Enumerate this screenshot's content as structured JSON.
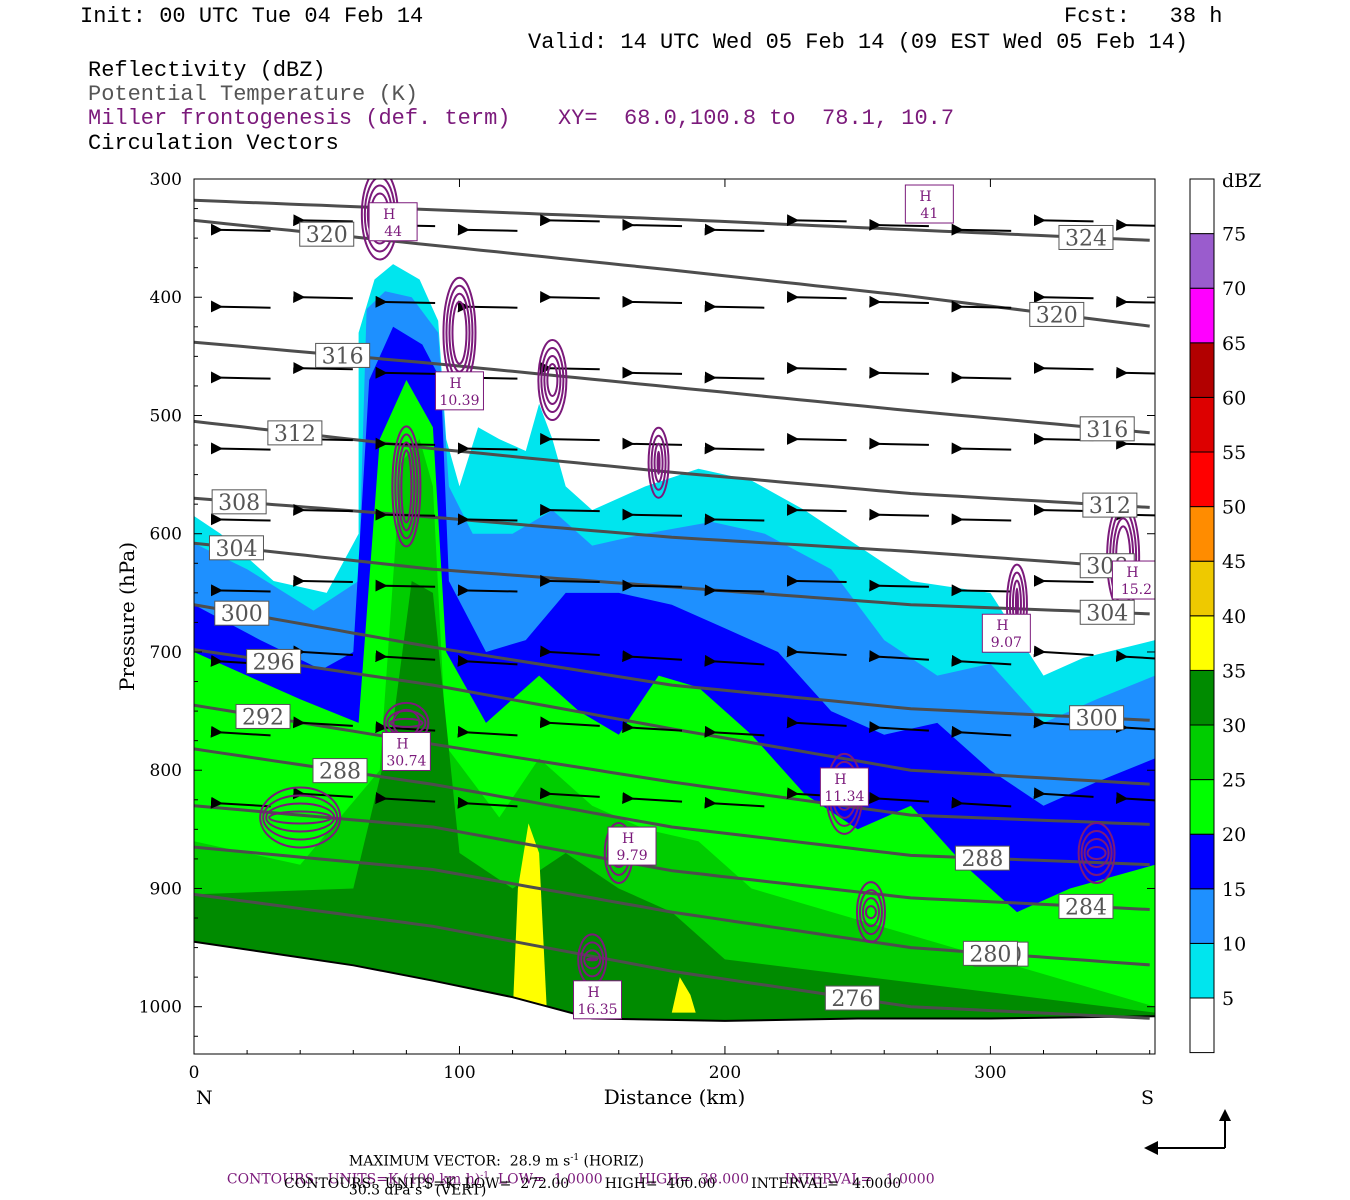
{
  "header": {
    "init": "Init: 00 UTC Tue 04 Feb 14",
    "fcst": "Fcst:   38 h",
    "valid": "Valid: 14 UTC Wed 05 Feb 14 (09 EST Wed 05 Feb 14)"
  },
  "legend": {
    "reflectivity": "Reflectivity (dBZ)",
    "theta": "Potential Temperature (K)",
    "frontogenesis": "Miller frontogenesis (def. term)",
    "xy": "XY=  68.0,100.8 to  78.1, 10.7",
    "vectors": "Circulation Vectors"
  },
  "colors": {
    "theta_line": "#4d4d4d",
    "fronto_line": "#7b1a7b",
    "vector": "#000000"
  },
  "chart_data": {
    "type": "heatmap",
    "xlabel": "Distance (km)",
    "ylabel": "Pressure (hPa)",
    "xlim": [
      0,
      362
    ],
    "ylim": [
      1040,
      300
    ],
    "x_ticks": [
      0,
      100,
      200,
      300
    ],
    "y_ticks": [
      300,
      400,
      500,
      600,
      700,
      800,
      900,
      1000
    ],
    "x_end_labels": {
      "left": "N",
      "right": "S"
    },
    "colorbar": {
      "unit": "dBZ",
      "levels": [
        5,
        10,
        15,
        20,
        25,
        30,
        35,
        40,
        45,
        50,
        55,
        60,
        65,
        70,
        75
      ],
      "colors": [
        "#ffffff",
        "#00e5ee",
        "#1e90ff",
        "#0000ff",
        "#00ff00",
        "#00cd00",
        "#008b00",
        "#ffff00",
        "#eec900",
        "#ff8c00",
        "#ff0000",
        "#dd0000",
        "#b20000",
        "#ff00ff",
        "#9a5ccd",
        "#ffffff"
      ]
    },
    "theta_isentropes": [
      {
        "label": "324",
        "p": [
          318,
          326,
          334,
          343,
          352
        ]
      },
      {
        "label": "320",
        "p": [
          335,
          356,
          377,
          399,
          425
        ]
      },
      {
        "label": "316",
        "p": [
          438,
          456,
          476,
          496,
          515
        ]
      },
      {
        "label": "312",
        "p": [
          505,
          528,
          548,
          566,
          578
        ]
      },
      {
        "label": "308",
        "p": [
          570,
          586,
          603,
          615,
          630
        ]
      },
      {
        "label": "304",
        "p": [
          608,
          630,
          645,
          660,
          668
        ]
      },
      {
        "label": "300",
        "p": [
          660,
          696,
          728,
          748,
          758
        ]
      },
      {
        "label": "296",
        "p": [
          698,
          728,
          765,
          800,
          812
        ]
      },
      {
        "label": "292",
        "p": [
          745,
          778,
          810,
          838,
          846
        ]
      },
      {
        "label": "288",
        "p": [
          782,
          812,
          848,
          872,
          880
        ]
      },
      {
        "label": "284",
        "p": [
          830,
          848,
          885,
          908,
          918
        ]
      },
      {
        "label": "280",
        "p": [
          865,
          884,
          920,
          950,
          965
        ]
      },
      {
        "label": "276",
        "p": [
          905,
          932,
          970,
          1000,
          1010
        ]
      }
    ],
    "theta_label_positions_km": {
      "324": 336,
      "320": 325,
      "316": 344,
      "312": 345,
      "308": 344,
      "304": 344,
      "300": 340,
      "296": 30,
      "292": 26,
      "288": 55,
      "284": 336,
      "280": 304,
      "276": 248
    },
    "theta_labels_left": [
      {
        "label": "320",
        "km": 50
      },
      {
        "label": "316",
        "km": 56
      },
      {
        "label": "312",
        "km": 38
      },
      {
        "label": "308",
        "km": 17
      },
      {
        "label": "304",
        "km": 16
      },
      {
        "label": "300",
        "km": 18
      },
      {
        "label": "288",
        "km": 55
      },
      {
        "label": "280",
        "km": 300
      },
      {
        "label": "288",
        "km": 297
      },
      {
        "label": "276",
        "km": 248
      }
    ],
    "fronto_maxima": [
      {
        "label": "H",
        "value": "44",
        "km": 75,
        "p": 337
      },
      {
        "label": "H",
        "value": "41",
        "km": 277,
        "p": 322
      },
      {
        "label": "H",
        "value": "10.39",
        "km": 100,
        "p": 480
      },
      {
        "label": "H",
        "value": "9.07",
        "km": 306,
        "p": 685
      },
      {
        "label": "H",
        "value": "15.2",
        "km": 355,
        "p": 640
      },
      {
        "label": "H",
        "value": "30.74",
        "km": 80,
        "p": 785
      },
      {
        "label": "H",
        "value": "11.34",
        "km": 245,
        "p": 815
      },
      {
        "label": "H",
        "value": "9.79",
        "km": 165,
        "p": 865
      },
      {
        "label": "H",
        "value": "16.35",
        "km": 152,
        "p": 995
      }
    ],
    "max_vector_text": "MAXIMUM VECTOR:  28.9 m s",
    "max_vector_horiz": " (HORIZ)",
    "max_vector_vert_value": "30.3 dPa s",
    "max_vector_vert": " (VERT)",
    "contours_fronto": "CONTOURS:  UNITS=K (100 km h)",
    "contours_fronto_rest": "  LOW=  1.0000        HIGH=  38.000        INTERVAL=   1.0000",
    "contours_theta": "CONTOURS:  UNITS=K  LOW=  272.00        HIGH=  400.00        INTERVAL=   4.0000",
    "superscript_minus1": "-1"
  }
}
